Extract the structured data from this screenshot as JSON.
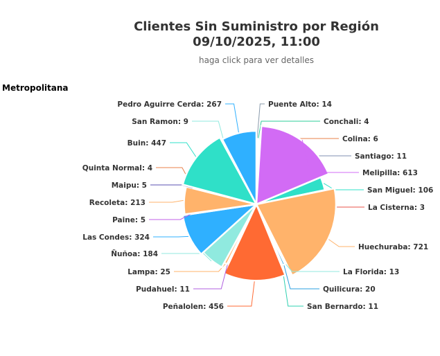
{
  "chart_data": {
    "type": "pie",
    "title": "Clientes Sin Suministro por Región",
    "subtitle_date": "09/10/2025, 11:00",
    "hint": "haga click para ver detalles",
    "region_label": "Metropolitana",
    "rose_type": "radius",
    "slices": [
      {
        "name": "Puente Alto",
        "value": 14,
        "color": "#8899aa"
      },
      {
        "name": "Conchali",
        "value": 4,
        "color": "#2ecc9a"
      },
      {
        "name": "Colina",
        "value": 6,
        "color": "#e8804a"
      },
      {
        "name": "Santiago",
        "value": 11,
        "color": "#7f8fb0"
      },
      {
        "name": "Melipilla",
        "value": 613,
        "color": "#d26bf5"
      },
      {
        "name": "San Miguel",
        "value": 106,
        "color": "#2fe0c8"
      },
      {
        "name": "La Cisterna",
        "value": 3,
        "color": "#e8504a"
      },
      {
        "name": "Huechuraba",
        "value": 721,
        "color": "#ffb36b"
      },
      {
        "name": "La Florida",
        "value": 13,
        "color": "#90eadf"
      },
      {
        "name": "Quilicura",
        "value": 20,
        "color": "#2a9fe0"
      },
      {
        "name": "San Bernardo",
        "value": 11,
        "color": "#2fd0b0"
      },
      {
        "name": "Peñalolen",
        "value": 456,
        "color": "#ff6a33"
      },
      {
        "name": "Pudahuel",
        "value": 11,
        "color": "#b05fe0"
      },
      {
        "name": "Lampa",
        "value": 25,
        "color": "#ffb36b"
      },
      {
        "name": "Ñuñoa",
        "value": 184,
        "color": "#90eadf"
      },
      {
        "name": "Las Condes",
        "value": 324,
        "color": "#2fb0ff"
      },
      {
        "name": "Paine",
        "value": 5,
        "color": "#c060e8"
      },
      {
        "name": "Recoleta",
        "value": 213,
        "color": "#ffb36b"
      },
      {
        "name": "Maipu",
        "value": 5,
        "color": "#5a4fb0"
      },
      {
        "name": "Quinta Normal",
        "value": 4,
        "color": "#e8804a"
      },
      {
        "name": "Buin",
        "value": 447,
        "color": "#2fe0c8"
      },
      {
        "name": "San Ramon",
        "value": 9,
        "color": "#90eadf"
      },
      {
        "name": "Pedro Aguirre Cerda",
        "value": 267,
        "color": "#2fb0ff"
      }
    ]
  }
}
